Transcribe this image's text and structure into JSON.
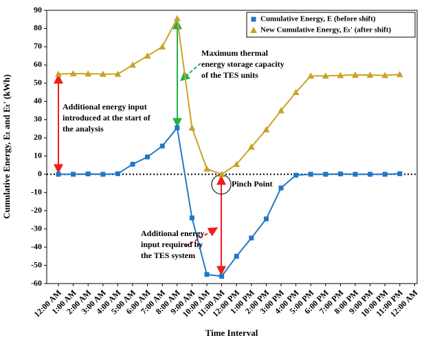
{
  "chart_data": {
    "type": "line",
    "y_label": "Cumulative Energy, Eₜ and Eₜ' (kWh)",
    "x_label": "Time Interval",
    "categories": [
      "12:00 AM",
      "1:00 AM",
      "2:00 AM",
      "3:00 AM",
      "4:00 AM",
      "5:00 AM",
      "6:00 AM",
      "7:00 AM",
      "8:00 AM",
      "9:00 AM",
      "10:00 AM",
      "11:00 AM",
      "12:00 PM",
      "1:00 PM",
      "2:00 PM",
      "3:00 PM",
      "4:00 PM",
      "5:00 PM",
      "6:00 PM",
      "7:00 PM",
      "8:00 PM",
      "9:00 PM",
      "10:00 PM",
      "11:00 PM",
      "12:00 AM"
    ],
    "series": [
      {
        "name": "Cumulative Energy, E (before shift)",
        "color": "#1f77c9",
        "marker": "square",
        "values": [
          0,
          0,
          0.2,
          0,
          0.3,
          5.5,
          9.5,
          15.5,
          25.5,
          -24,
          -55,
          -56,
          -45,
          -35,
          -24.5,
          -7.5,
          -0.5,
          0,
          0,
          0.2,
          0,
          0,
          0,
          0.3,
          null
        ]
      },
      {
        "name": "New Cumulative Energy, Eₜ' (after shift)",
        "color": "#c9a227",
        "marker": "triangle",
        "values": [
          55,
          55.3,
          55.2,
          55,
          55,
          60,
          65,
          70,
          85.5,
          25.5,
          3,
          0,
          5.5,
          15,
          24.5,
          35,
          45,
          54,
          54,
          54.3,
          54.5,
          54.5,
          54.3,
          54.8,
          null
        ]
      }
    ],
    "ylim": [
      -60,
      90
    ],
    "yticks": [
      -60,
      -50,
      -40,
      -30,
      -20,
      -10,
      0,
      10,
      20,
      30,
      40,
      50,
      60,
      70,
      80,
      90
    ],
    "legend": "upper right",
    "annotations": [
      {
        "lines": [
          "Maximum thermal",
          "energy storage capacity",
          "of the TES units"
        ],
        "color": "#22b14c"
      },
      {
        "lines": [
          "Additional energy input",
          "introduced at the start of",
          "the analysis"
        ],
        "color": "#ee1c1c"
      },
      {
        "lines": [
          "Pinch Point"
        ],
        "color": "#000000"
      },
      {
        "lines": [
          "Additional  energy",
          "input  required  by",
          "the TES system"
        ],
        "color": "#ee1c1c"
      }
    ]
  }
}
